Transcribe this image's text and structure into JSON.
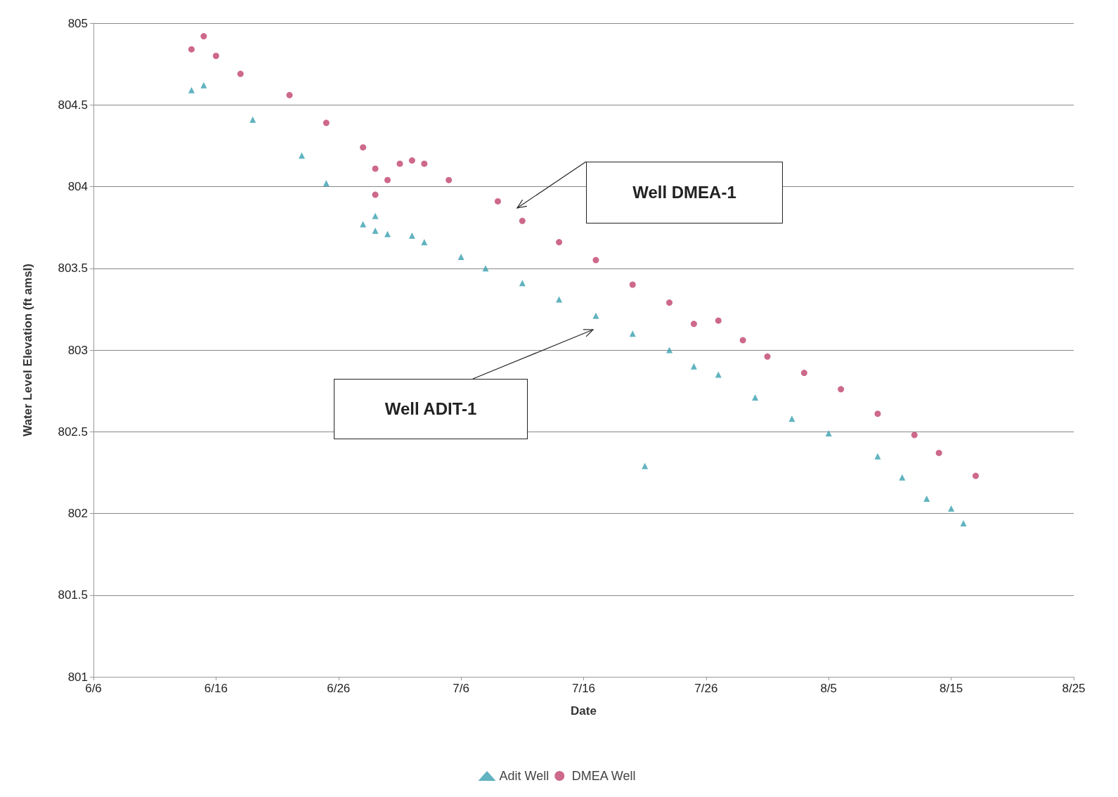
{
  "chart_data": {
    "type": "scatter",
    "xlabel": "Date",
    "ylabel": "Water Level Elevation (ft amsl)",
    "xlim": [
      "--06-06",
      "--08-25"
    ],
    "xticks": [
      {
        "value": "--06-06",
        "label": "6/6"
      },
      {
        "value": "--06-16",
        "label": "6/16"
      },
      {
        "value": "--06-26",
        "label": "6/26"
      },
      {
        "value": "--07-06",
        "label": "7/6"
      },
      {
        "value": "--07-16",
        "label": "7/16"
      },
      {
        "value": "--07-26",
        "label": "7/26"
      },
      {
        "value": "--08-05",
        "label": "8/5"
      },
      {
        "value": "--08-15",
        "label": "8/15"
      },
      {
        "value": "--08-25",
        "label": "8/25"
      }
    ],
    "ylim": [
      801,
      805
    ],
    "yticks": [
      801,
      801.5,
      802,
      802.5,
      803,
      803.5,
      804,
      804.5,
      805
    ],
    "grid": "y",
    "legend": "bottom",
    "series": [
      {
        "name": "Adit Well",
        "color": "#3aa0b0",
        "marker": "triangle",
        "x": [
          "--06-14",
          "--06-15",
          "--06-19",
          "--06-23",
          "--06-25",
          "--06-28",
          "--06-29",
          "--06-29",
          "--06-30",
          "--07-02",
          "--07-03",
          "--07-06",
          "--07-08",
          "--07-11",
          "--07-14",
          "--07-17",
          "--07-20",
          "--07-21",
          "--07-23",
          "--07-25",
          "--07-27",
          "--07-30",
          "--08-02",
          "--08-05",
          "--08-09",
          "--08-11",
          "--08-13",
          "--08-15",
          "--08-16"
        ],
        "values": [
          804.59,
          804.62,
          804.41,
          804.19,
          804.02,
          803.77,
          803.82,
          803.73,
          803.71,
          803.7,
          803.66,
          803.57,
          803.5,
          803.41,
          803.31,
          803.21,
          803.1,
          802.29,
          803.0,
          802.9,
          802.85,
          802.71,
          802.58,
          802.49,
          802.35,
          802.22,
          802.09,
          802.03,
          801.94
        ]
      },
      {
        "name": "DMEA Well",
        "color": "#c0446e",
        "marker": "circle",
        "x": [
          "--06-14",
          "--06-15",
          "--06-16",
          "--06-18",
          "--06-22",
          "--06-25",
          "--06-28",
          "--06-29",
          "--06-29",
          "--06-30",
          "--07-01",
          "--07-02",
          "--07-03",
          "--07-05",
          "--07-09",
          "--07-11",
          "--07-14",
          "--07-17",
          "--07-20",
          "--07-23",
          "--07-25",
          "--07-27",
          "--07-29",
          "--07-31",
          "--08-03",
          "--08-06",
          "--08-09",
          "--08-12",
          "--08-14",
          "--08-17"
        ],
        "values": [
          804.84,
          804.92,
          804.8,
          804.69,
          804.56,
          804.39,
          804.24,
          804.11,
          803.95,
          804.04,
          804.14,
          804.16,
          804.14,
          804.04,
          803.91,
          803.79,
          803.66,
          803.55,
          803.4,
          803.29,
          803.16,
          803.18,
          803.06,
          802.96,
          802.86,
          802.76,
          802.61,
          802.48,
          802.37,
          802.23
        ]
      }
    ],
    "annotations": [
      "Well DMEA-1",
      "Well ADIT-1"
    ]
  }
}
